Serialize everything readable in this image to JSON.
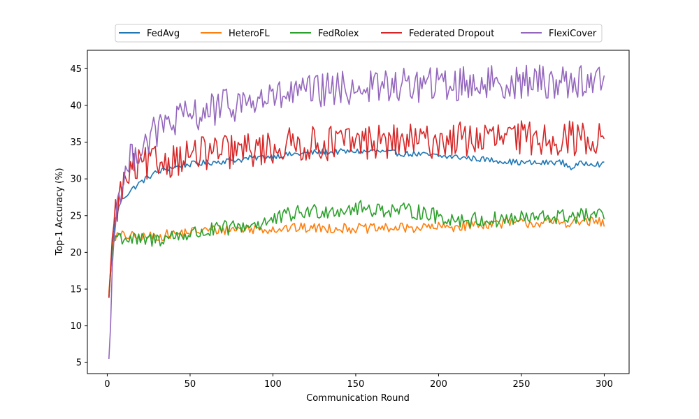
{
  "chart_data": {
    "type": "line",
    "title": "",
    "xlabel": "Communication Round",
    "ylabel": "Top-1 Accuracy (%)",
    "xlim": [
      -12,
      315
    ],
    "ylim": [
      3.5,
      47.5
    ],
    "xticks": [
      0,
      50,
      100,
      150,
      200,
      250,
      300
    ],
    "yticks": [
      5,
      10,
      15,
      20,
      25,
      30,
      35,
      40,
      45
    ],
    "grid": false,
    "legend": "top-center",
    "series": [
      {
        "name": "FedAvg",
        "color": "#1f77b4",
        "points": [
          [
            1,
            13.8
          ],
          [
            3,
            20.5
          ],
          [
            5,
            24.5
          ],
          [
            8,
            26.8
          ],
          [
            10,
            27.5
          ],
          [
            15,
            28.6
          ],
          [
            20,
            29.5
          ],
          [
            25,
            30.3
          ],
          [
            30,
            30.9
          ],
          [
            35,
            31.3
          ],
          [
            40,
            31.6
          ],
          [
            45,
            31.8
          ],
          [
            50,
            32.0
          ],
          [
            55,
            32.1
          ],
          [
            60,
            32.2
          ],
          [
            65,
            32.3
          ],
          [
            70,
            32.4
          ],
          [
            75,
            32.6
          ],
          [
            80,
            32.6
          ],
          [
            85,
            32.8
          ],
          [
            90,
            32.9
          ],
          [
            95,
            33.0
          ],
          [
            100,
            33.1
          ],
          [
            105,
            33.2
          ],
          [
            110,
            33.3
          ],
          [
            115,
            33.4
          ],
          [
            120,
            33.5
          ],
          [
            125,
            33.6
          ],
          [
            130,
            33.7
          ],
          [
            135,
            33.6
          ],
          [
            140,
            33.7
          ],
          [
            145,
            33.7
          ],
          [
            150,
            33.8
          ],
          [
            155,
            33.7
          ],
          [
            160,
            33.8
          ],
          [
            165,
            33.7
          ],
          [
            170,
            33.6
          ],
          [
            175,
            33.5
          ],
          [
            180,
            33.4
          ],
          [
            185,
            33.4
          ],
          [
            190,
            33.3
          ],
          [
            195,
            33.2
          ],
          [
            200,
            33.1
          ],
          [
            205,
            33.0
          ],
          [
            210,
            33.0
          ],
          [
            215,
            32.9
          ],
          [
            220,
            32.8
          ],
          [
            225,
            32.7
          ],
          [
            230,
            32.6
          ],
          [
            235,
            32.5
          ],
          [
            240,
            32.4
          ],
          [
            245,
            32.3
          ],
          [
            250,
            32.2
          ],
          [
            255,
            32.2
          ],
          [
            260,
            32.1
          ],
          [
            265,
            32.2
          ],
          [
            270,
            32.3
          ],
          [
            275,
            32.2
          ],
          [
            280,
            31.5
          ],
          [
            285,
            32.0
          ],
          [
            290,
            32.2
          ],
          [
            295,
            32.1
          ],
          [
            300,
            31.9
          ]
        ],
        "noise": 0.4
      },
      {
        "name": "HeteroFL",
        "color": "#ff7f0e",
        "points": [
          [
            1,
            14.5
          ],
          [
            3,
            21.0
          ],
          [
            5,
            22.2
          ],
          [
            10,
            22.3
          ],
          [
            20,
            22.0
          ],
          [
            30,
            22.2
          ],
          [
            40,
            22.5
          ],
          [
            50,
            22.8
          ],
          [
            60,
            23.0
          ],
          [
            70,
            23.1
          ],
          [
            80,
            23.2
          ],
          [
            90,
            23.2
          ],
          [
            100,
            23.2
          ],
          [
            110,
            23.3
          ],
          [
            120,
            23.3
          ],
          [
            130,
            23.3
          ],
          [
            140,
            23.3
          ],
          [
            150,
            23.3
          ],
          [
            160,
            23.2
          ],
          [
            170,
            23.3
          ],
          [
            180,
            23.3
          ],
          [
            190,
            23.4
          ],
          [
            200,
            23.4
          ],
          [
            210,
            23.5
          ],
          [
            220,
            23.7
          ],
          [
            230,
            23.9
          ],
          [
            240,
            24.0
          ],
          [
            250,
            24.0
          ],
          [
            260,
            24.0
          ],
          [
            270,
            24.1
          ],
          [
            280,
            24.1
          ],
          [
            290,
            24.2
          ],
          [
            300,
            24.0
          ]
        ],
        "noise": 0.7
      },
      {
        "name": "FedRolex",
        "color": "#2ca02c",
        "points": [
          [
            1,
            14.0
          ],
          [
            3,
            20.5
          ],
          [
            5,
            22.3
          ],
          [
            10,
            22.0
          ],
          [
            20,
            21.5
          ],
          [
            30,
            21.8
          ],
          [
            40,
            22.2
          ],
          [
            50,
            22.5
          ],
          [
            60,
            22.8
          ],
          [
            70,
            23.2
          ],
          [
            80,
            23.5
          ],
          [
            90,
            23.9
          ],
          [
            100,
            24.3
          ],
          [
            110,
            25.1
          ],
          [
            120,
            25.5
          ],
          [
            130,
            25.7
          ],
          [
            140,
            25.8
          ],
          [
            150,
            26.0
          ],
          [
            160,
            25.9
          ],
          [
            170,
            25.8
          ],
          [
            180,
            25.6
          ],
          [
            190,
            25.5
          ],
          [
            200,
            24.8
          ],
          [
            210,
            24.5
          ],
          [
            220,
            24.4
          ],
          [
            230,
            24.4
          ],
          [
            240,
            24.5
          ],
          [
            250,
            24.6
          ],
          [
            260,
            24.7
          ],
          [
            270,
            24.8
          ],
          [
            280,
            24.9
          ],
          [
            290,
            25.0
          ],
          [
            300,
            24.9
          ]
        ],
        "noise": 1.1
      },
      {
        "name": "Federated Dropout",
        "color": "#d62728",
        "points": [
          [
            1,
            13.8
          ],
          [
            3,
            22.0
          ],
          [
            5,
            25.5
          ],
          [
            8,
            28.0
          ],
          [
            10,
            29.3
          ],
          [
            15,
            31.0
          ],
          [
            20,
            31.8
          ],
          [
            25,
            32.0
          ],
          [
            30,
            32.2
          ],
          [
            40,
            32.7
          ],
          [
            50,
            33.2
          ],
          [
            60,
            33.5
          ],
          [
            70,
            33.6
          ],
          [
            80,
            33.8
          ],
          [
            90,
            34.0
          ],
          [
            100,
            34.2
          ],
          [
            110,
            34.6
          ],
          [
            120,
            34.7
          ],
          [
            130,
            34.8
          ],
          [
            140,
            35.0
          ],
          [
            150,
            35.0
          ],
          [
            160,
            35.1
          ],
          [
            170,
            35.0
          ],
          [
            180,
            35.1
          ],
          [
            190,
            35.0
          ],
          [
            200,
            35.2
          ],
          [
            210,
            35.4
          ],
          [
            220,
            35.4
          ],
          [
            230,
            35.5
          ],
          [
            240,
            35.5
          ],
          [
            250,
            35.5
          ],
          [
            260,
            35.6
          ],
          [
            270,
            35.6
          ],
          [
            280,
            35.5
          ],
          [
            290,
            35.5
          ],
          [
            300,
            35.5
          ]
        ],
        "noise": 2.4
      },
      {
        "name": "FlexiCover",
        "color": "#9467bd",
        "points": [
          [
            1,
            5.5
          ],
          [
            2,
            10.0
          ],
          [
            3,
            18.0
          ],
          [
            5,
            25.0
          ],
          [
            8,
            29.0
          ],
          [
            10,
            30.0
          ],
          [
            15,
            33.0
          ],
          [
            20,
            34.5
          ],
          [
            25,
            35.5
          ],
          [
            30,
            36.5
          ],
          [
            35,
            37.2
          ],
          [
            40,
            37.8
          ],
          [
            50,
            38.5
          ],
          [
            60,
            39.2
          ],
          [
            70,
            39.8
          ],
          [
            80,
            40.3
          ],
          [
            90,
            40.6
          ],
          [
            100,
            41.0
          ],
          [
            110,
            41.4
          ],
          [
            120,
            41.7
          ],
          [
            130,
            42.0
          ],
          [
            140,
            42.2
          ],
          [
            150,
            42.4
          ],
          [
            160,
            42.5
          ],
          [
            170,
            42.6
          ],
          [
            180,
            42.7
          ],
          [
            190,
            42.8
          ],
          [
            200,
            42.8
          ],
          [
            210,
            42.9
          ],
          [
            220,
            43.0
          ],
          [
            230,
            43.1
          ],
          [
            240,
            43.1
          ],
          [
            250,
            43.2
          ],
          [
            260,
            43.2
          ],
          [
            270,
            43.2
          ],
          [
            280,
            43.3
          ],
          [
            290,
            43.3
          ],
          [
            300,
            43.3
          ]
        ],
        "noise": 2.4
      }
    ]
  }
}
